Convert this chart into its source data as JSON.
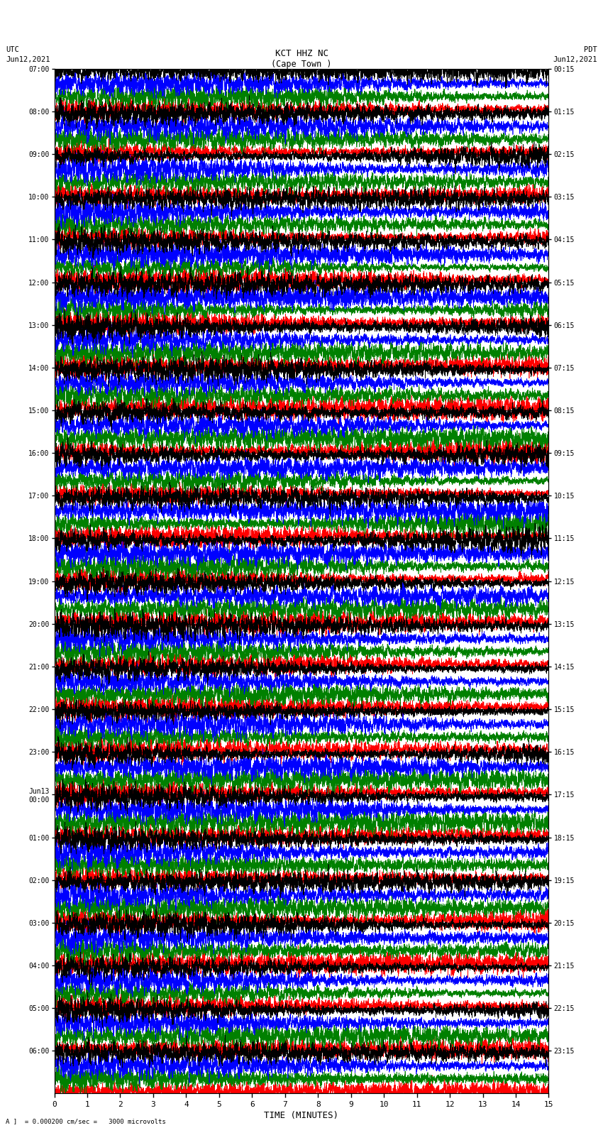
{
  "title_line1": "KCT HHZ NC",
  "title_line2": "(Cape Town )",
  "title_line3": "I = 0.000200 cm/sec",
  "left_label_top": "UTC",
  "left_label_date": "Jun12,2021",
  "right_label_top": "PDT",
  "right_label_date": "Jun12,2021",
  "bottom_label": "TIME (MINUTES)",
  "scale_label": "= 0.000200 cm/sec =   3000 microvolts",
  "utc_times": [
    "07:00",
    "08:00",
    "09:00",
    "10:00",
    "11:00",
    "12:00",
    "13:00",
    "14:00",
    "15:00",
    "16:00",
    "17:00",
    "18:00",
    "19:00",
    "20:00",
    "21:00",
    "22:00",
    "23:00",
    "Jun13\n00:00",
    "01:00",
    "02:00",
    "03:00",
    "04:00",
    "05:00",
    "06:00"
  ],
  "pdt_times": [
    "00:15",
    "01:15",
    "02:15",
    "03:15",
    "04:15",
    "05:15",
    "06:15",
    "07:15",
    "08:15",
    "09:15",
    "10:15",
    "11:15",
    "12:15",
    "13:15",
    "14:15",
    "15:15",
    "16:15",
    "17:15",
    "18:15",
    "19:15",
    "20:15",
    "21:15",
    "22:15",
    "23:15"
  ],
  "n_rows": 24,
  "n_cols": 6000,
  "colors": [
    "red",
    "green",
    "blue",
    "black"
  ],
  "bg_color": "white",
  "plot_bg": "white",
  "xticks": [
    0,
    1,
    2,
    3,
    4,
    5,
    6,
    7,
    8,
    9,
    10,
    11,
    12,
    13,
    14,
    15
  ],
  "xlim": [
    0,
    15
  ],
  "amplitude": 0.42,
  "sub_band_offsets": [
    -0.45,
    -0.15,
    0.15,
    0.45
  ],
  "linewidth": 0.5,
  "high_freq": 80.0,
  "noise_scale": 0.9
}
